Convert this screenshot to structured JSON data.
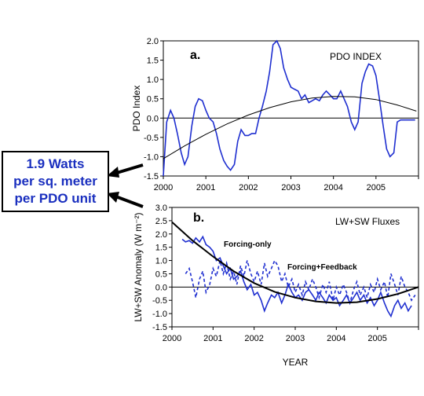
{
  "callout": {
    "lines": [
      "1.9 Watts",
      "per sq. meter",
      "per PDO unit"
    ]
  },
  "colors": {
    "series_blue": "#1f2fd0",
    "fit_black": "#000000",
    "callout_text": "#1a2fbf"
  },
  "chart_data": [
    {
      "type": "line",
      "panel_label": "a.",
      "title": "PDO INDEX",
      "xlabel": "",
      "ylabel": "PDO Index",
      "xlim": [
        2000,
        2006
      ],
      "ylim": [
        -1.5,
        2.0
      ],
      "x_ticks": [
        "2000",
        "2001",
        "2002",
        "2003",
        "2004",
        "2005"
      ],
      "y_ticks": [
        "2.0",
        "1.5",
        "1.0",
        "0.5",
        "0.0",
        "-0.5",
        "-1.0",
        "-1.5"
      ],
      "grid": false,
      "series": [
        {
          "style": "solid",
          "color": "#1f2fd0",
          "x": [
            2000.0,
            2000.08,
            2000.17,
            2000.25,
            2000.33,
            2000.42,
            2000.5,
            2000.58,
            2000.67,
            2000.75,
            2000.83,
            2000.92,
            2001.0,
            2001.08,
            2001.17,
            2001.25,
            2001.33,
            2001.42,
            2001.5,
            2001.58,
            2001.67,
            2001.75,
            2001.83,
            2001.92,
            2002.0,
            2002.08,
            2002.17,
            2002.25,
            2002.33,
            2002.42,
            2002.5,
            2002.58,
            2002.67,
            2002.75,
            2002.83,
            2002.92,
            2003.0,
            2003.08,
            2003.17,
            2003.25,
            2003.33,
            2003.42,
            2003.5,
            2003.58,
            2003.67,
            2003.75,
            2003.83,
            2003.92,
            2004.0,
            2004.08,
            2004.17,
            2004.25,
            2004.33,
            2004.42,
            2004.5,
            2004.58,
            2004.67,
            2004.75,
            2004.83,
            2004.92,
            2005.0,
            2005.08,
            2005.17,
            2005.25,
            2005.33,
            2005.42,
            2005.5,
            2005.58,
            2005.67,
            2005.75,
            2005.83,
            2005.92
          ],
          "y": [
            -1.5,
            -0.1,
            0.2,
            0.0,
            -0.4,
            -0.9,
            -1.2,
            -1.0,
            -0.2,
            0.3,
            0.5,
            0.45,
            0.2,
            0.0,
            -0.1,
            -0.4,
            -0.8,
            -1.1,
            -1.25,
            -1.35,
            -1.2,
            -0.6,
            -0.3,
            -0.45,
            -0.45,
            -0.4,
            -0.4,
            0.0,
            0.3,
            0.7,
            1.2,
            1.9,
            2.0,
            1.8,
            1.3,
            1.0,
            0.8,
            0.75,
            0.7,
            0.5,
            0.6,
            0.4,
            0.45,
            0.5,
            0.45,
            0.6,
            0.7,
            0.6,
            0.5,
            0.5,
            0.7,
            0.5,
            0.3,
            -0.1,
            -0.3,
            -0.1,
            0.9,
            1.2,
            1.4,
            1.35,
            1.1,
            0.5,
            -0.2,
            -0.8,
            -1.0,
            -0.9,
            -0.1,
            -0.05,
            -0.05,
            -0.05,
            -0.05,
            -0.05
          ]
        },
        {
          "style": "solid",
          "color": "#000000",
          "role": "fit",
          "x": [
            2000.0,
            2000.5,
            2001.0,
            2001.5,
            2002.0,
            2002.5,
            2003.0,
            2003.5,
            2004.0,
            2004.5,
            2005.0,
            2005.5,
            2005.95
          ],
          "y": [
            -1.05,
            -0.72,
            -0.42,
            -0.15,
            0.08,
            0.27,
            0.42,
            0.52,
            0.56,
            0.55,
            0.48,
            0.34,
            0.18
          ]
        }
      ]
    },
    {
      "type": "line",
      "panel_label": "b.",
      "title": "LW+SW Fluxes",
      "xlabel": "YEAR",
      "ylabel": "LW+SW Anomaly (W m⁻²)",
      "xlim": [
        2000,
        2006
      ],
      "ylim": [
        -1.5,
        3.0
      ],
      "x_ticks": [
        "2000",
        "2001",
        "2002",
        "2003",
        "2004",
        "2005"
      ],
      "y_ticks": [
        "3.0",
        "2.5",
        "2.0",
        "1.5",
        "1.0",
        "0.5",
        "0.0",
        "-0.5",
        "-1.0",
        "-1.5"
      ],
      "grid": false,
      "annotations": [
        "Forcing-only",
        "Forcing+Feedback"
      ],
      "series": [
        {
          "name": "Forcing-only",
          "style": "solid",
          "color": "#1f2fd0",
          "x": [
            2000.25,
            2000.33,
            2000.42,
            2000.5,
            2000.58,
            2000.67,
            2000.75,
            2000.83,
            2000.92,
            2001.0,
            2001.08,
            2001.17,
            2001.25,
            2001.33,
            2001.42,
            2001.5,
            2001.58,
            2001.67,
            2001.75,
            2001.83,
            2001.92,
            2002.0,
            2002.08,
            2002.17,
            2002.25,
            2002.33,
            2002.42,
            2002.5,
            2002.58,
            2002.67,
            2002.75,
            2002.83,
            2002.92,
            2003.0,
            2003.08,
            2003.17,
            2003.25,
            2003.33,
            2003.42,
            2003.5,
            2003.58,
            2003.67,
            2003.75,
            2003.83,
            2003.92,
            2004.0,
            2004.08,
            2004.17,
            2004.25,
            2004.33,
            2004.42,
            2004.5,
            2004.58,
            2004.67,
            2004.75,
            2004.83,
            2004.92,
            2005.0,
            2005.08,
            2005.17,
            2005.25,
            2005.33,
            2005.42,
            2005.5,
            2005.58,
            2005.67,
            2005.75,
            2005.83
          ],
          "y": [
            1.8,
            1.7,
            1.75,
            1.65,
            1.85,
            1.7,
            1.9,
            1.6,
            1.5,
            1.35,
            1.0,
            1.1,
            0.8,
            0.5,
            0.7,
            0.3,
            0.4,
            0.6,
            0.2,
            -0.1,
            0.1,
            -0.3,
            -0.2,
            -0.5,
            -0.9,
            -0.6,
            -0.3,
            -0.4,
            -0.2,
            -0.6,
            -0.3,
            0.1,
            -0.2,
            -0.4,
            -0.3,
            -0.5,
            -0.2,
            -0.1,
            -0.3,
            -0.5,
            -0.2,
            -0.4,
            -0.6,
            -0.3,
            -0.5,
            -0.4,
            -0.7,
            -0.5,
            -0.3,
            -0.6,
            -0.4,
            -0.2,
            -0.5,
            -0.3,
            -0.6,
            -0.4,
            -0.7,
            -0.5,
            -0.2,
            -0.6,
            -0.9,
            -1.1,
            -0.7,
            -0.5,
            -0.8,
            -0.6,
            -0.9,
            -0.7
          ]
        },
        {
          "name": "Forcing+Feedback",
          "style": "dashed",
          "color": "#1f2fd0",
          "x": [
            2000.33,
            2000.42,
            2000.5,
            2000.58,
            2000.67,
            2000.75,
            2000.83,
            2000.92,
            2001.0,
            2001.08,
            2001.17,
            2001.25,
            2001.33,
            2001.42,
            2001.5,
            2001.58,
            2001.67,
            2001.75,
            2001.83,
            2001.92,
            2002.0,
            2002.08,
            2002.17,
            2002.25,
            2002.33,
            2002.42,
            2002.5,
            2002.58,
            2002.67,
            2002.75,
            2002.83,
            2002.92,
            2003.0,
            2003.08,
            2003.17,
            2003.25,
            2003.33,
            2003.42,
            2003.5,
            2003.58,
            2003.67,
            2003.75,
            2003.83,
            2003.92,
            2004.0,
            2004.08,
            2004.17,
            2004.25,
            2004.33,
            2004.42,
            2004.5,
            2004.58,
            2004.67,
            2004.75,
            2004.83,
            2004.92,
            2005.0,
            2005.08,
            2005.17,
            2005.25,
            2005.33,
            2005.42,
            2005.5,
            2005.58,
            2005.67,
            2005.75,
            2005.83,
            2005.92
          ],
          "y": [
            0.5,
            0.7,
            0.2,
            -0.4,
            0.3,
            0.6,
            -0.2,
            0.1,
            0.7,
            0.4,
            1.0,
            0.5,
            0.9,
            0.3,
            0.6,
            0.1,
            0.8,
            0.4,
            1.0,
            0.5,
            0.2,
            0.6,
            0.1,
            0.9,
            0.4,
            0.7,
            1.0,
            0.8,
            0.2,
            0.5,
            0.0,
            0.3,
            -0.2,
            0.1,
            -0.3,
            0.2,
            -0.1,
            0.3,
            0.0,
            -0.4,
            0.1,
            -0.2,
            0.2,
            -0.5,
            0.0,
            -0.3,
            0.1,
            -0.2,
            -0.6,
            -0.1,
            0.2,
            -0.3,
            0.0,
            -0.4,
            0.1,
            -0.2,
            0.3,
            -0.1,
            0.2,
            -0.4,
            0.5,
            0.1,
            -0.3,
            0.4,
            0.0,
            -0.2,
            -0.5,
            -0.3
          ]
        },
        {
          "style": "solid",
          "color": "#000000",
          "role": "fit",
          "x": [
            2000.0,
            2000.5,
            2001.0,
            2001.5,
            2002.0,
            2002.5,
            2003.0,
            2003.5,
            2004.0,
            2004.5,
            2005.0,
            2005.5,
            2006.0
          ],
          "y": [
            2.45,
            1.75,
            1.15,
            0.6,
            0.15,
            -0.18,
            -0.4,
            -0.54,
            -0.6,
            -0.57,
            -0.45,
            -0.26,
            0.0
          ]
        }
      ]
    }
  ]
}
